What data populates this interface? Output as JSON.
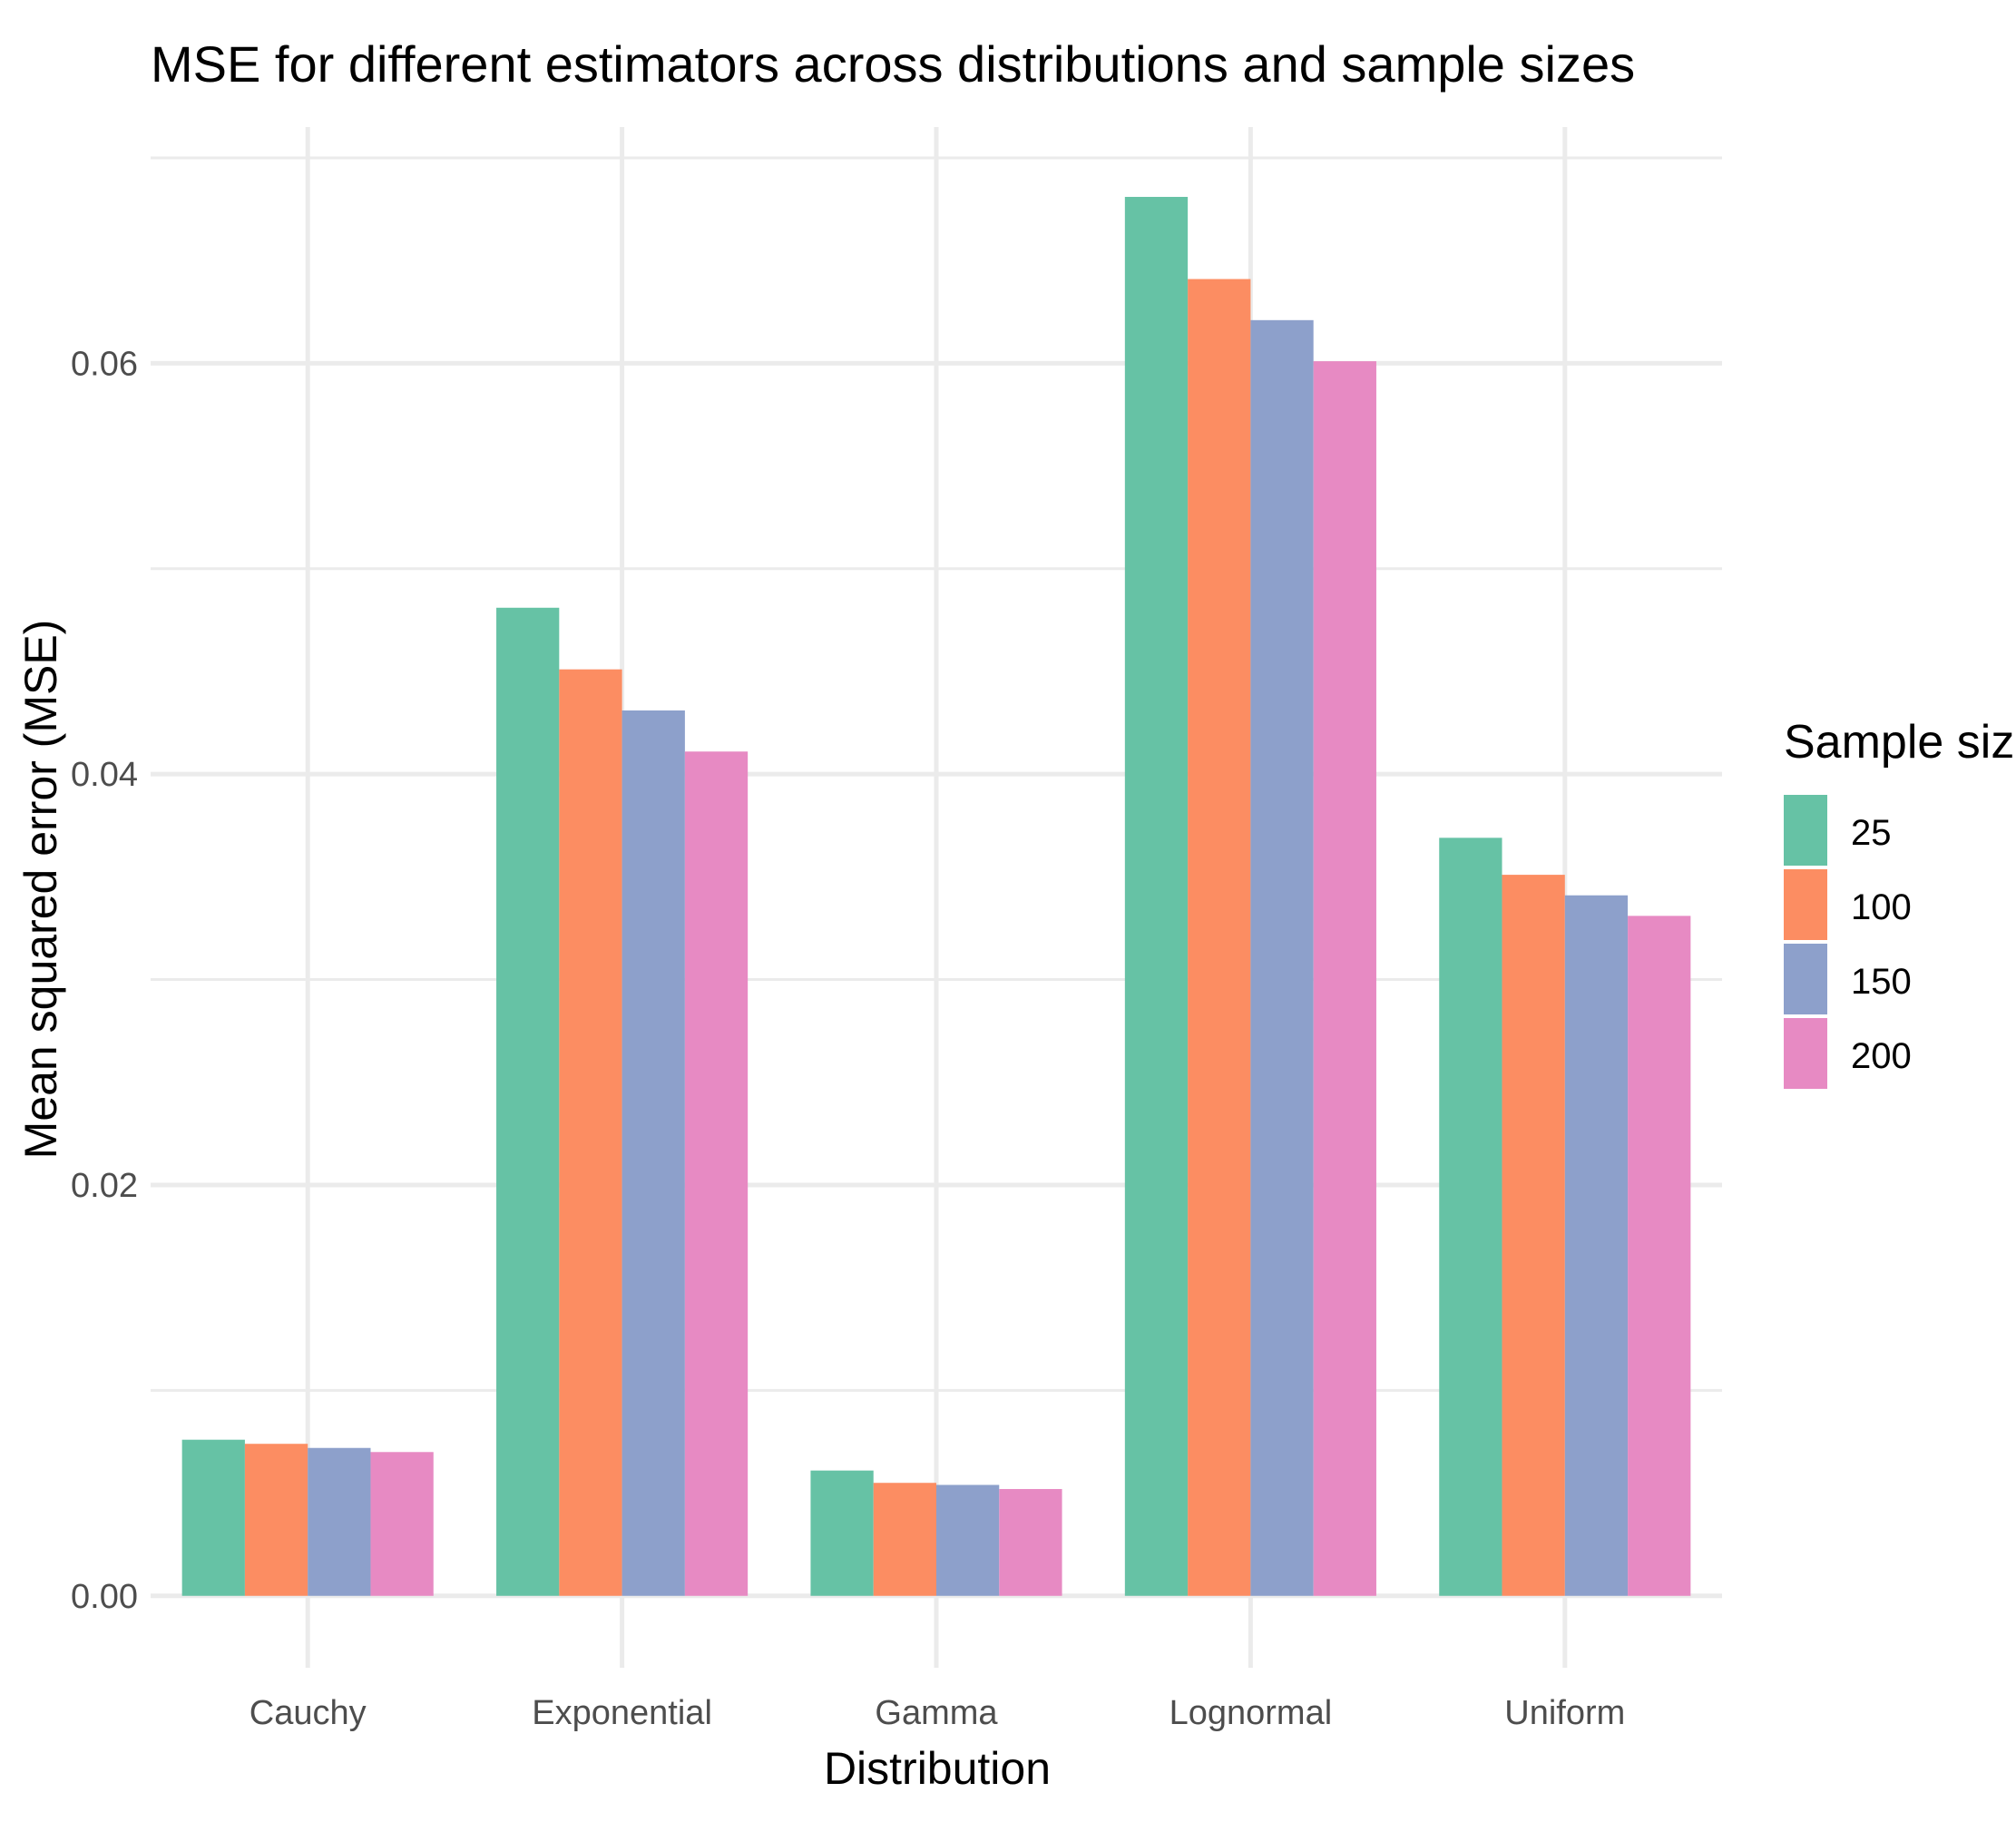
{
  "chart_data": {
    "type": "bar",
    "title": "MSE for different estimators across distributions and sample sizes",
    "xlabel": "Distribution",
    "ylabel": "Mean squared error (MSE)",
    "categories": [
      "Cauchy",
      "Exponential",
      "Gamma",
      "Lognormal",
      "Uniform"
    ],
    "ylim": [
      -0.0035,
      0.0715
    ],
    "yticks": [
      0.0,
      0.02,
      0.04,
      0.06
    ],
    "ytick_labels": [
      "0.00",
      "0.02",
      "0.04",
      "0.06"
    ],
    "y_minor_ticks": [
      0.01,
      0.03,
      0.05,
      0.07
    ],
    "grid": true,
    "legend": {
      "title": "Sample size",
      "position": "right"
    },
    "series": [
      {
        "name": "25",
        "color": "#66c2a5",
        "values": [
          0.0076,
          0.0481,
          0.0061,
          0.0681,
          0.0369
        ]
      },
      {
        "name": "100",
        "color": "#fc8d62",
        "values": [
          0.0074,
          0.0451,
          0.0055,
          0.0641,
          0.0351
        ]
      },
      {
        "name": "150",
        "color": "#8da0cb",
        "values": [
          0.0072,
          0.0431,
          0.0054,
          0.0621,
          0.0341
        ]
      },
      {
        "name": "200",
        "color": "#e78ac3",
        "values": [
          0.007,
          0.0411,
          0.0052,
          0.0601,
          0.0331
        ]
      }
    ]
  }
}
